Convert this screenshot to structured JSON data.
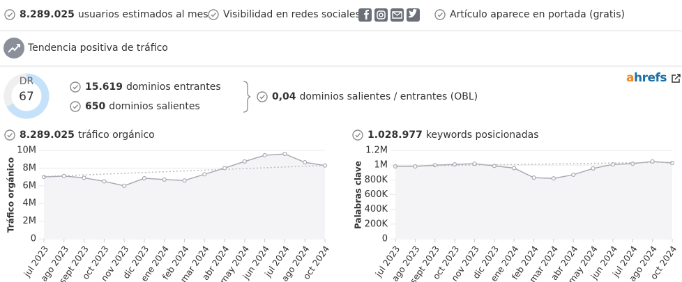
{
  "stats": [
    {
      "value": "8.289.025",
      "label": "usuarios estimados al mes"
    },
    {
      "label": "Visibilidad en redes sociales"
    },
    {
      "label": "Artículo aparece en portada (gratis)"
    }
  ],
  "trend_label": "Tendencia positiva de tráfico",
  "dr": {
    "label": "DR",
    "value": 67
  },
  "links": [
    {
      "value": "15.619",
      "label": "dominios entrantes"
    },
    {
      "value": "650",
      "label": "dominios salientes"
    }
  ],
  "obl": {
    "value": "0,04",
    "label": "dominios salientes / entrantes (OBL)"
  },
  "brand": "ahrefs",
  "chart_data": [
    {
      "type": "line",
      "heading_value": "8.289.025",
      "heading": "tráfico orgánico",
      "y_label": "Tráfico orgánico",
      "categories": [
        "jul 2023",
        "ago 2023",
        "sept 2023",
        "oct 2023",
        "nov 2023",
        "dic 2023",
        "ene 2024",
        "feb 2024",
        "mar 2024",
        "abr 2024",
        "may 2024",
        "jun 2024",
        "jul 2024",
        "ago 2024",
        "oct 2024"
      ],
      "series": [
        {
          "color": "#a9a9b3",
          "values": [
            7000000,
            7100000,
            6900000,
            6500000,
            6000000,
            6850000,
            6700000,
            6600000,
            7300000,
            8000000,
            8750000,
            9450000,
            9600000,
            8650000,
            8289025
          ]
        }
      ],
      "trend": [
        7050000,
        8300000
      ],
      "ylim": [
        0,
        10000000
      ],
      "yticks": [
        0,
        {
          "value": 2000000,
          "label": "2M"
        },
        {
          "value": 4000000,
          "label": "4M"
        },
        {
          "value": 6000000,
          "label": "6M"
        },
        {
          "value": 8000000,
          "label": "8M"
        },
        {
          "value": 10000000,
          "label": "10M"
        }
      ],
      "grid": true
    },
    {
      "type": "line",
      "heading_value": "1.028.977",
      "heading": "keywords posicionadas",
      "y_label": "Palabras clave",
      "categories": [
        "jul 2023",
        "ago 2023",
        "sept 2023",
        "oct 2023",
        "nov 2023",
        "dic 2023",
        "ene 2024",
        "feb 2024",
        "mar 2024",
        "abr 2024",
        "may 2024",
        "jun 2024",
        "jul 2024",
        "ago 2024",
        "oct 2024"
      ],
      "series": [
        {
          "color": "#a9a9b3",
          "values": [
            983000,
            983000,
            1000000,
            1010000,
            1020000,
            990000,
            960000,
            830000,
            820000,
            870000,
            955000,
            1010000,
            1020000,
            1050000,
            1028977
          ]
        }
      ],
      "trend": [
        985000,
        1040000
      ],
      "ylim": [
        0,
        1200000
      ],
      "yticks": [
        0,
        {
          "value": 200000,
          "label": "200K"
        },
        {
          "value": 400000,
          "label": "400K"
        },
        {
          "value": 600000,
          "label": "600K"
        },
        {
          "value": 800000,
          "label": "800K"
        },
        {
          "value": 1000000,
          "label": "1M"
        },
        {
          "value": 1200000,
          "label": "1.2M"
        }
      ],
      "grid": true
    }
  ]
}
